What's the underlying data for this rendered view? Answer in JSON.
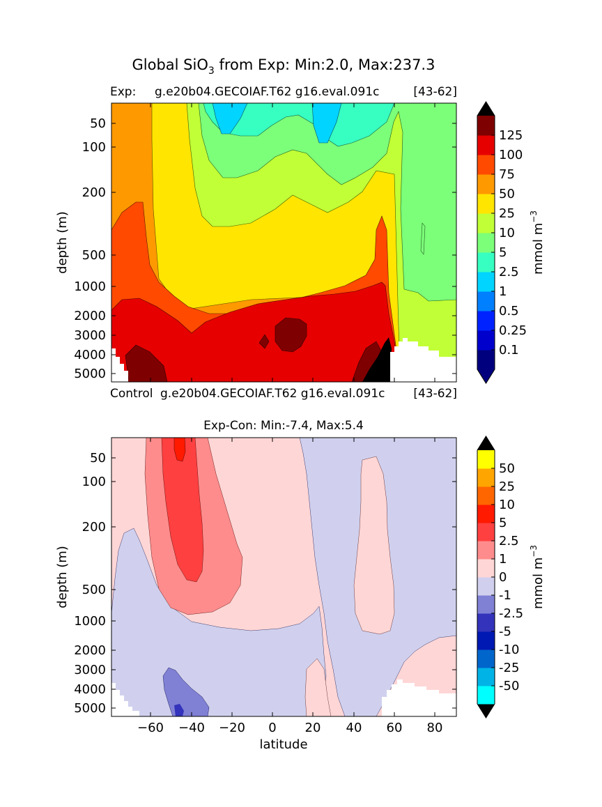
{
  "chart_data": [
    {
      "type": "contour",
      "suptitle": "Global SiO",
      "suptitle_sub": "3",
      "suptitle_rest": " from Exp: Min:2.0, Max:237.3",
      "title_left": "Exp:",
      "title_mid": "g.e20b04.GECOIAF.T62 g16.eval.091c",
      "title_right": "[43-62]",
      "ylabel": "depth (m)",
      "yticks": [
        "50",
        "100",
        "200",
        "500",
        "1000",
        "2000",
        "3000",
        "4000",
        "5000"
      ],
      "colorbar_label": "mmol m",
      "colorbar_label_sup": "−3",
      "levels": [
        "0.1",
        "0.25",
        "0.5",
        "1",
        "2.5",
        "5",
        "10",
        "25",
        "50",
        "75",
        "100",
        "125"
      ],
      "colors": [
        "#00007f",
        "#0000cd",
        "#0022ff",
        "#0080ff",
        "#00d4ff",
        "#36ffc1",
        "#7cff79",
        "#c1ff36",
        "#ffe500",
        "#ff9900",
        "#ff4a00",
        "#e60000",
        "#7f0000"
      ],
      "extend_low_color": "#00007f",
      "extend_high_color": "#000000",
      "min": 2.0,
      "max": 237.3
    },
    {
      "type": "contour",
      "top_title_left": "Control",
      "top_title_mid": "g.e20b04.GECOIAF.T62 g16.eval.091c",
      "top_title_right": "[43-62]",
      "title": "Exp-Con: Min:-7.4, Max:5.4",
      "xlabel": "latitude",
      "ylabel": "depth (m)",
      "xticks": [
        "−60",
        "−40",
        "−20",
        "0",
        "20",
        "40",
        "60",
        "80"
      ],
      "xlim": [
        -80,
        90
      ],
      "yticks": [
        "50",
        "100",
        "200",
        "500",
        "1000",
        "2000",
        "3000",
        "4000",
        "5000"
      ],
      "colorbar_label": "mmol m",
      "colorbar_label_sup": "−3",
      "levels": [
        "-50",
        "-25",
        "-10",
        "-5",
        "-2.5",
        "-1",
        "0",
        "1",
        "2.5",
        "5",
        "10",
        "25",
        "50"
      ],
      "colors": [
        "#00ffff",
        "#00b3e6",
        "#0066cc",
        "#0019b3",
        "#3333bb",
        "#8080d5",
        "#d0d0ee",
        "#ffd6d6",
        "#ff8c8c",
        "#ff4040",
        "#ff1a00",
        "#ff6600",
        "#ffa500",
        "#ffff00"
      ],
      "extend_low_color": "#000000",
      "extend_high_color": "#000000",
      "min": -7.4,
      "max": 5.4
    }
  ]
}
